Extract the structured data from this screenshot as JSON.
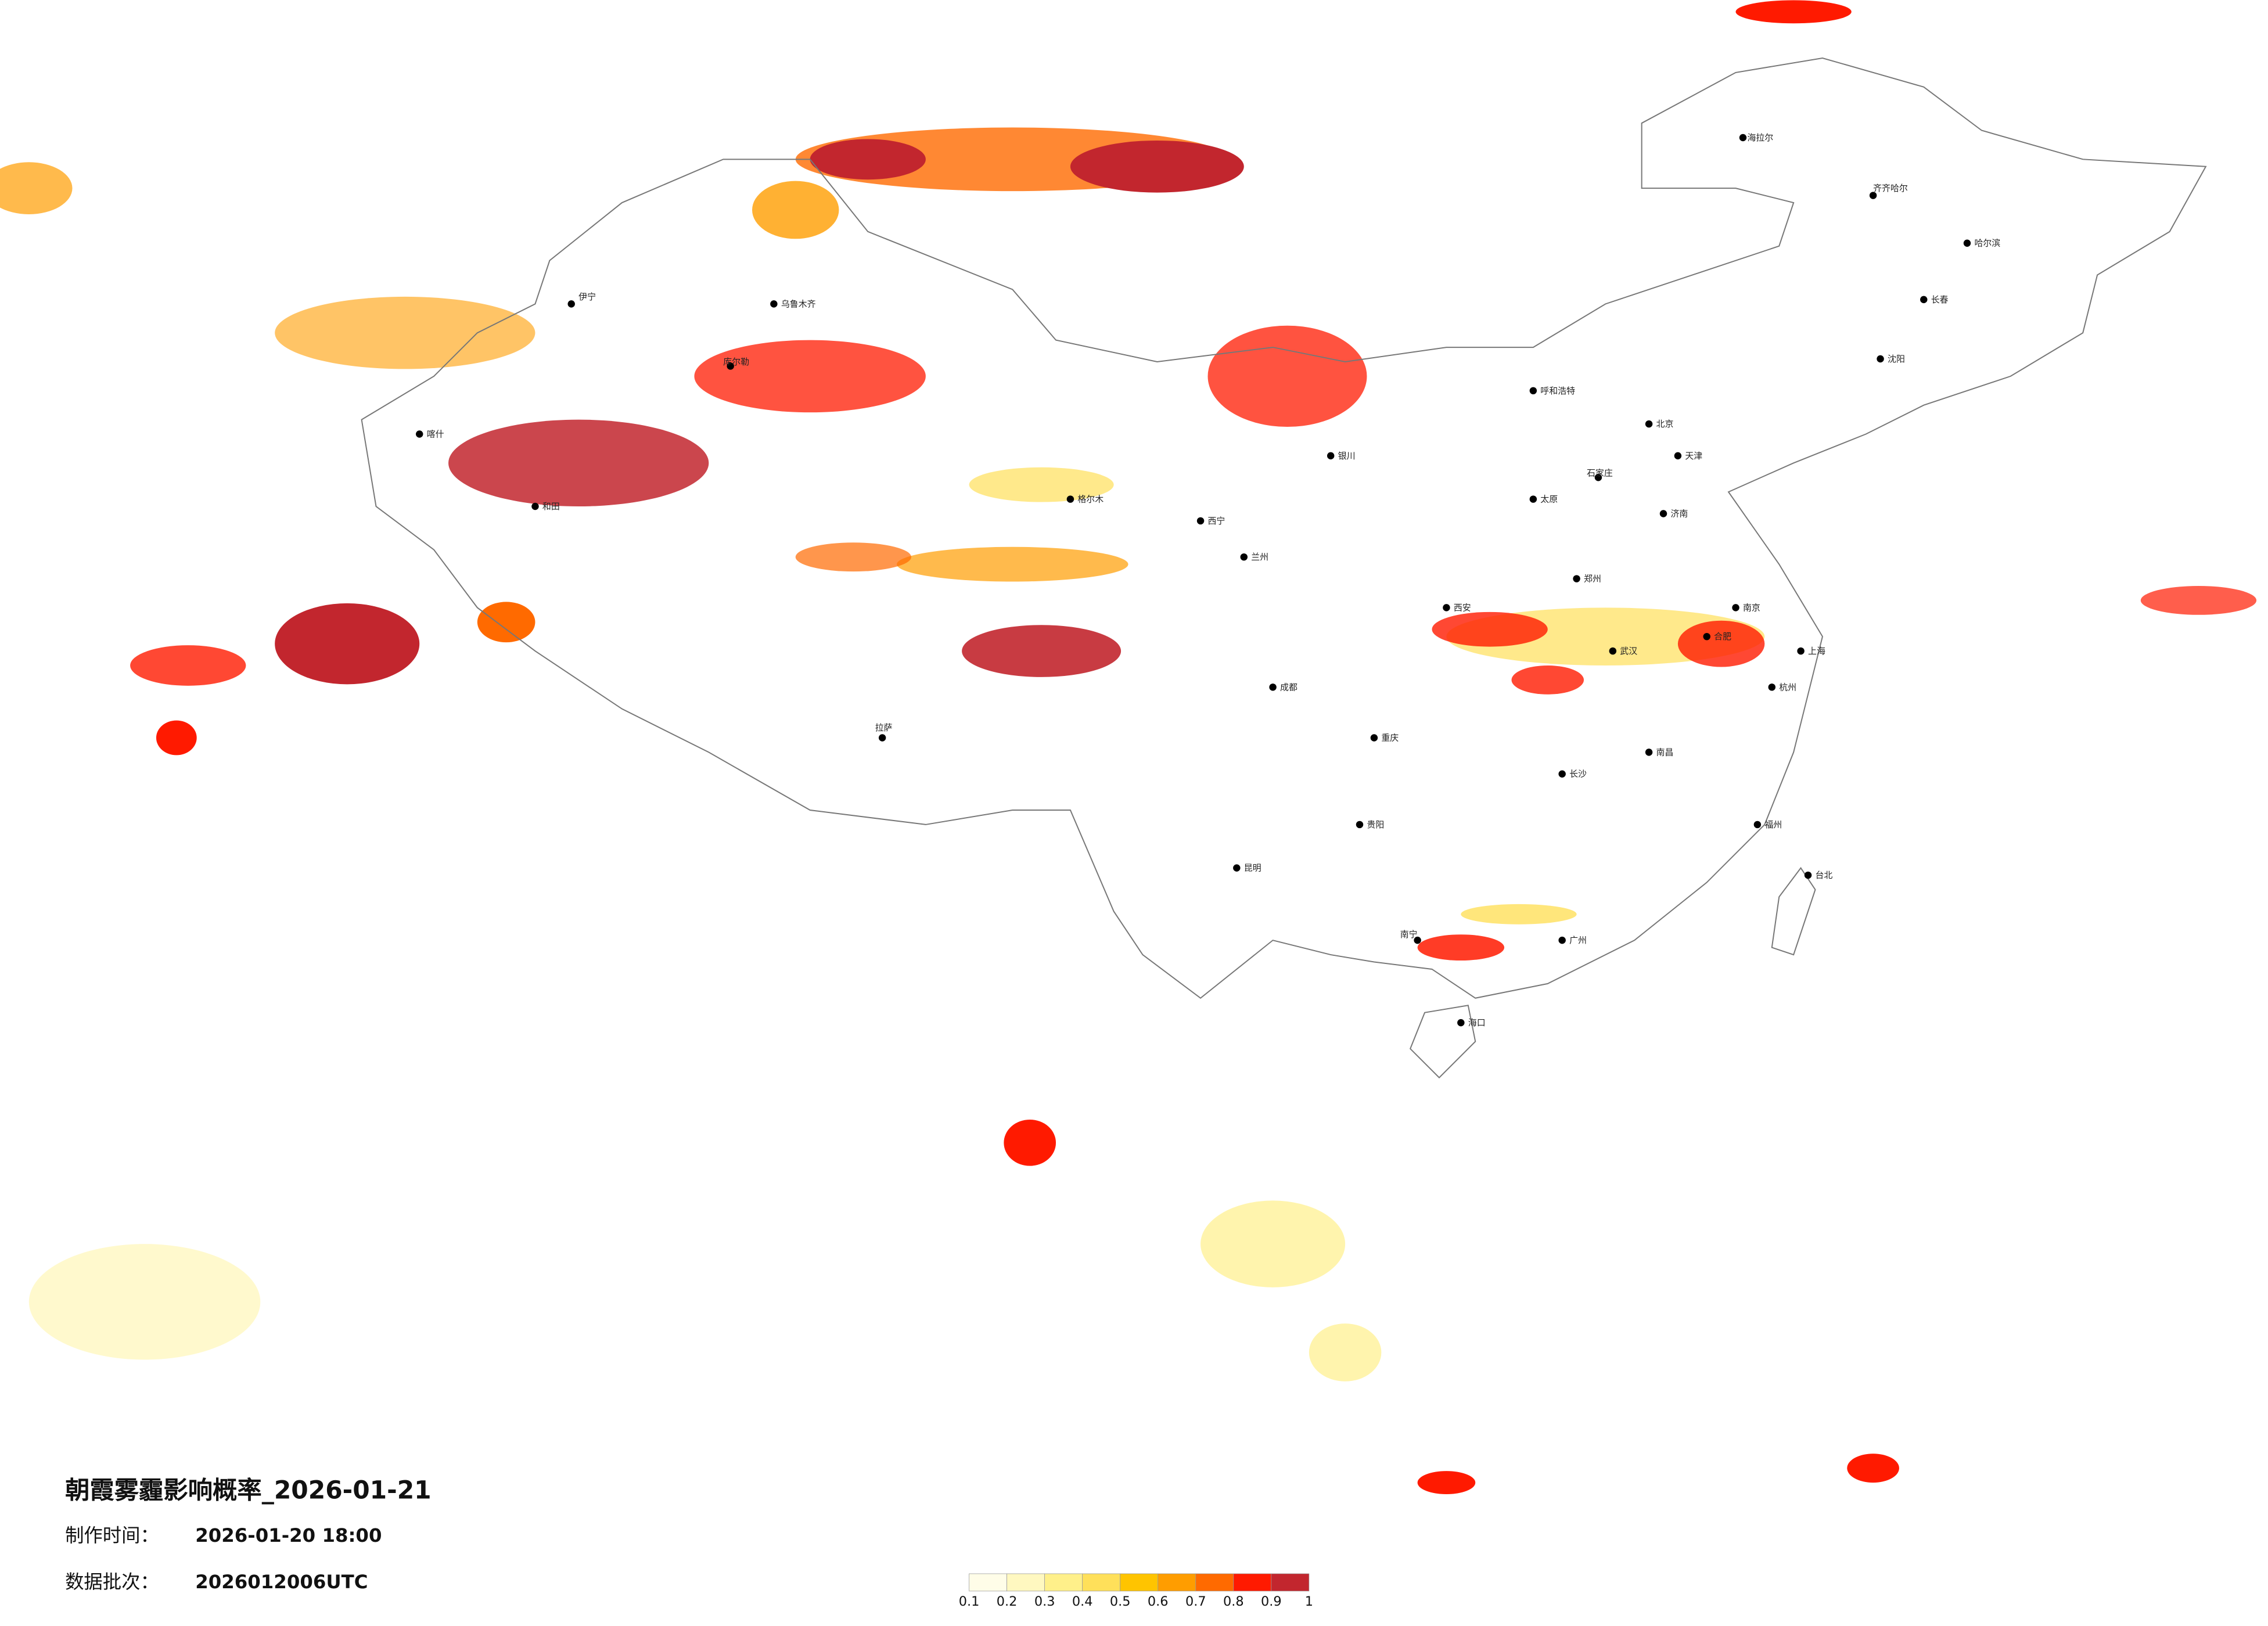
{
  "title": "朝霞雾霾影响概率_2026-01-21",
  "made_time": {
    "label": "制作时间：",
    "value": "2026-01-20 18:00"
  },
  "batch": {
    "label": "数据批次：",
    "value": "2026012006UTC"
  },
  "legend": {
    "ticks": [
      0.1,
      0.2,
      0.3,
      0.4,
      0.5,
      0.6,
      0.7,
      0.8,
      0.9,
      1
    ],
    "colors": [
      "#fffde8",
      "#fff8c0",
      "#fff08a",
      "#ffe05a",
      "#ffc400",
      "#ff9d00",
      "#ff6a00",
      "#ff1a00",
      "#c2262e"
    ]
  },
  "cities": [
    "哈尔滨",
    "长春",
    "沈阳",
    "北京",
    "天津",
    "石家庄",
    "太原",
    "呼和浩特",
    "济南",
    "郑州",
    "西安",
    "兰州",
    "西宁",
    "银川",
    "乌鲁木齐",
    "拉萨",
    "成都",
    "重庆",
    "武汉",
    "长沙",
    "南昌",
    "合肥",
    "南京",
    "上海",
    "杭州",
    "福州",
    "广州",
    "南宁",
    "昆明",
    "贵阳",
    "海口",
    "台北",
    "伊宁",
    "喀什",
    "库尔勒",
    "和田",
    "格尔木",
    "齐齐哈尔",
    "海拉尔"
  ]
}
